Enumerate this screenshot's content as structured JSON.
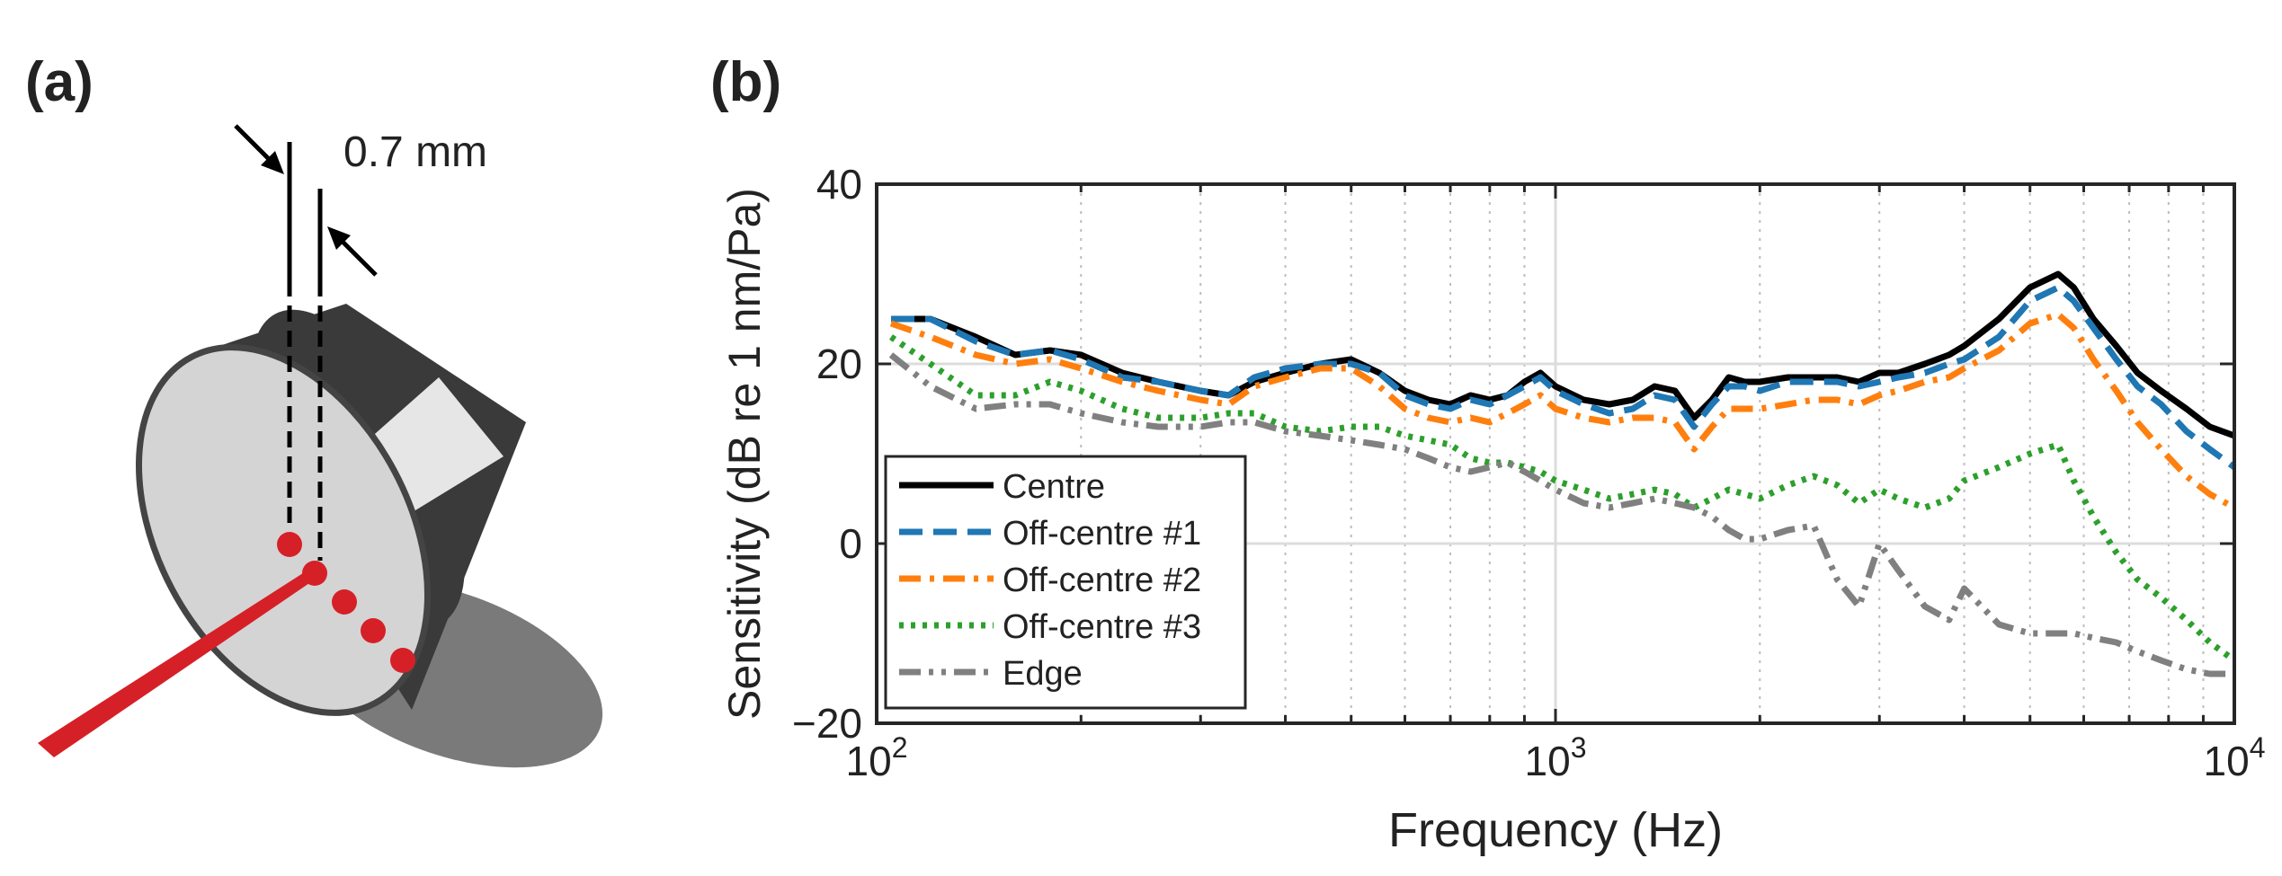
{
  "panel_a": {
    "label": "(a)",
    "dimension_text": "0.7 mm",
    "colors": {
      "laser": "#d62027",
      "points": "#d62027",
      "dark": "#3a3a3a",
      "face": "#d4d4d4",
      "shadow": "#7a7a7a"
    }
  },
  "chart_data": {
    "panel_label": "(b)",
    "type": "line",
    "title": "",
    "xlabel": "Frequency (Hz)",
    "ylabel": "Sensitivity (dB re 1 nm/Pa)",
    "xscale": "log",
    "xlim": [
      100,
      10000
    ],
    "ylim": [
      -20,
      40
    ],
    "xticks": [
      100,
      1000,
      10000
    ],
    "xticklabels": [
      {
        "base": "10",
        "exp": "2"
      },
      {
        "base": "10",
        "exp": "3"
      },
      {
        "base": "10",
        "exp": "4"
      }
    ],
    "yticks": [
      -20,
      0,
      20,
      40
    ],
    "yticklabels": [
      "−20",
      "0",
      "20",
      "40"
    ],
    "grid": true,
    "legend": "lower-left",
    "series": [
      {
        "name": "Centre",
        "color": "#000000",
        "dash": "solid",
        "x": [
          105,
          120,
          140,
          160,
          180,
          200,
          230,
          260,
          300,
          330,
          360,
          400,
          450,
          500,
          550,
          600,
          650,
          700,
          750,
          800,
          850,
          900,
          950,
          1000,
          1100,
          1200,
          1300,
          1400,
          1500,
          1600,
          1700,
          1800,
          1900,
          2000,
          2200,
          2400,
          2600,
          2800,
          3000,
          3200,
          3500,
          3800,
          4000,
          4500,
          5000,
          5500,
          5800,
          6200,
          6700,
          7200,
          7800,
          8500,
          9200,
          10000
        ],
        "y": [
          25,
          25,
          23,
          21,
          21.5,
          21,
          19,
          18,
          17,
          16.5,
          18,
          19,
          20,
          20.5,
          19,
          17,
          16,
          15.5,
          16.5,
          16,
          16.5,
          18,
          19,
          17.5,
          16,
          15.5,
          16,
          17.5,
          17,
          14,
          16,
          18.5,
          18,
          18,
          18.5,
          18.5,
          18.5,
          18,
          19,
          19,
          20,
          21,
          22,
          25,
          28.5,
          30,
          28.5,
          25,
          22,
          19,
          17,
          15,
          13,
          12
        ]
      },
      {
        "name": "Off-centre #1",
        "color": "#1f77b4",
        "dash": "dashed",
        "x": [
          105,
          120,
          140,
          160,
          180,
          200,
          230,
          260,
          300,
          330,
          360,
          400,
          450,
          500,
          550,
          600,
          650,
          700,
          750,
          800,
          850,
          900,
          950,
          1000,
          1100,
          1200,
          1300,
          1400,
          1500,
          1600,
          1700,
          1800,
          1900,
          2000,
          2200,
          2400,
          2600,
          2800,
          3000,
          3200,
          3500,
          3800,
          4000,
          4500,
          5000,
          5500,
          5800,
          6200,
          6700,
          7200,
          7800,
          8500,
          9200,
          10000
        ],
        "y": [
          25,
          25,
          22.5,
          21,
          21.5,
          20.5,
          18.5,
          18,
          17,
          16.5,
          18.5,
          19.5,
          20,
          20,
          19,
          16.5,
          15.5,
          15,
          16,
          15.5,
          16.5,
          17.5,
          18.5,
          17,
          15.5,
          14.5,
          15,
          16.5,
          16,
          13,
          15.5,
          17.5,
          17.5,
          17,
          18,
          18,
          18,
          17.5,
          18,
          18.5,
          19,
          20,
          20.5,
          23,
          27,
          28.5,
          27,
          24,
          20.5,
          17.5,
          15.5,
          12.5,
          10.5,
          8.5
        ]
      },
      {
        "name": "Off-centre #2",
        "color": "#ff7f0e",
        "dash": "dashdot",
        "x": [
          105,
          120,
          140,
          160,
          180,
          200,
          230,
          260,
          300,
          330,
          360,
          400,
          450,
          500,
          550,
          600,
          650,
          700,
          750,
          800,
          850,
          900,
          950,
          1000,
          1100,
          1200,
          1300,
          1400,
          1500,
          1600,
          1700,
          1800,
          1900,
          2000,
          2200,
          2400,
          2600,
          2800,
          3000,
          3200,
          3500,
          3800,
          4000,
          4500,
          5000,
          5500,
          5800,
          6200,
          6700,
          7200,
          7800,
          8500,
          9200,
          10000
        ],
        "y": [
          24.5,
          23,
          21,
          20,
          20.5,
          19.5,
          18,
          17,
          16,
          15.5,
          17.5,
          18.5,
          19.5,
          19.5,
          17.5,
          15,
          14,
          13.5,
          14,
          13.5,
          14.5,
          15.5,
          16.5,
          15,
          14,
          13.5,
          14,
          14,
          13.5,
          10.5,
          13,
          15,
          15,
          15,
          15.5,
          16,
          16,
          15.5,
          16.5,
          17,
          18,
          18.5,
          19.5,
          21.5,
          24.5,
          25.5,
          24,
          20.5,
          17,
          13.5,
          10.5,
          7.5,
          5.5,
          4
        ]
      },
      {
        "name": "Off-centre #3",
        "color": "#2ca02c",
        "dash": "dotted",
        "x": [
          105,
          120,
          140,
          160,
          180,
          200,
          230,
          260,
          300,
          330,
          360,
          400,
          450,
          500,
          550,
          600,
          650,
          700,
          750,
          800,
          850,
          900,
          950,
          1000,
          1100,
          1200,
          1300,
          1400,
          1500,
          1600,
          1700,
          1800,
          1900,
          2000,
          2200,
          2400,
          2600,
          2800,
          3000,
          3200,
          3500,
          3800,
          4000,
          4500,
          5000,
          5500,
          5800,
          6200,
          6700,
          7200,
          7800,
          8500,
          9200,
          10000
        ],
        "y": [
          23,
          20,
          16.5,
          16.5,
          18,
          17,
          15,
          14,
          14,
          14.5,
          14.5,
          13,
          12.5,
          13,
          13,
          12,
          11.5,
          11,
          9.5,
          9,
          9,
          8.5,
          8,
          7,
          6,
          5,
          5.5,
          6,
          5.5,
          4,
          5,
          6,
          5.5,
          5,
          6.5,
          7.5,
          6.5,
          4.5,
          6,
          5,
          4,
          5,
          7,
          8.5,
          10,
          11,
          7,
          3,
          -1,
          -4,
          -6,
          -8.5,
          -11,
          -13
        ]
      },
      {
        "name": "Edge",
        "color": "#808080",
        "dash": "dashdotdot",
        "x": [
          105,
          120,
          140,
          160,
          180,
          200,
          230,
          260,
          300,
          330,
          360,
          400,
          450,
          500,
          550,
          600,
          650,
          700,
          750,
          800,
          850,
          900,
          950,
          1000,
          1100,
          1200,
          1300,
          1400,
          1500,
          1600,
          1700,
          1800,
          1900,
          2000,
          2200,
          2400,
          2600,
          2800,
          3000,
          3200,
          3500,
          3800,
          4000,
          4500,
          5000,
          5500,
          5800,
          6200,
          6700,
          7200,
          7800,
          8500,
          9200,
          10000
        ],
        "y": [
          21,
          17.5,
          15,
          15.5,
          15.5,
          14.5,
          13.5,
          13,
          13,
          13.5,
          13.5,
          12.5,
          12,
          11.5,
          11,
          10.5,
          9.5,
          8.5,
          8,
          8.5,
          9,
          8,
          7,
          6,
          4.5,
          4,
          4.5,
          5,
          4.5,
          4,
          3,
          1.5,
          0.5,
          0.5,
          1.5,
          2,
          -4,
          -7,
          0,
          -3,
          -7,
          -8.5,
          -5,
          -9,
          -10,
          -10,
          -10,
          -10.5,
          -11,
          -12,
          -13,
          -14,
          -14.5,
          -14.5
        ]
      }
    ]
  }
}
